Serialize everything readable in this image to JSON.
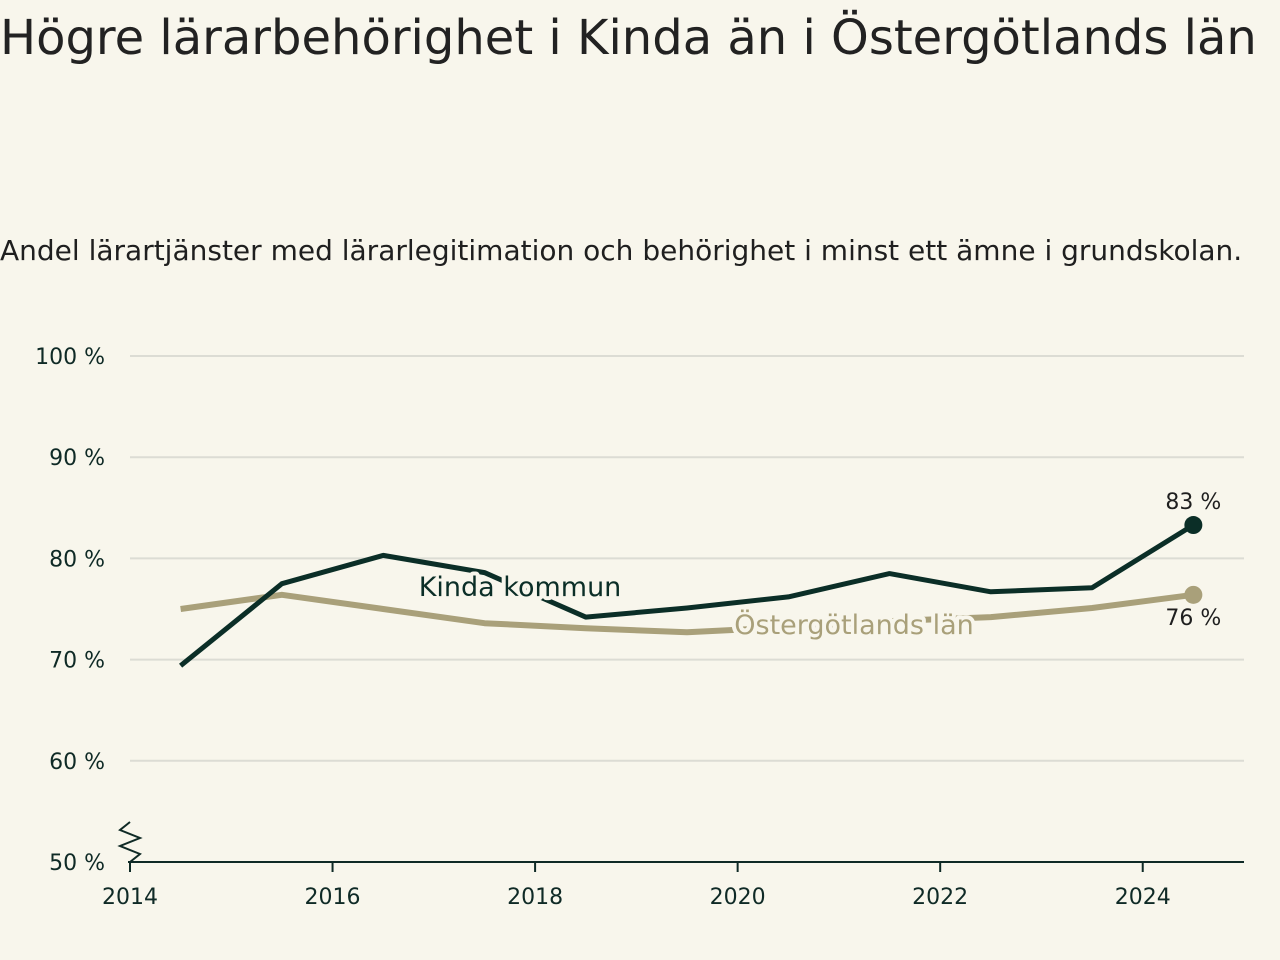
{
  "header": {
    "title": "Högre lärarbehörighet i Kinda än i Östergötlands län",
    "subtitle": "Andel lärartjänster med lärarlegitimation och behörighet i minst ett ämne i grundskolan."
  },
  "colors": {
    "background": "#f8f6ec",
    "kinda": "#0b2e27",
    "ostergotland": "#a9a07a",
    "grid": "#dcdcd4",
    "axis": "#0f2a26"
  },
  "chart_data": {
    "type": "line",
    "title": "Högre lärarbehörighet i Kinda än i Östergötlands län",
    "subtitle": "Andel lärartjänster med lärarlegitimation och behörighet i minst ett ämne i grundskolan.",
    "x": [
      2014.5,
      2015.5,
      2016.5,
      2017.5,
      2018.5,
      2019.5,
      2020.5,
      2021.5,
      2022.5,
      2023.5,
      2024.5
    ],
    "x_ticks": [
      2014,
      2016,
      2018,
      2020,
      2022,
      2024
    ],
    "x_tick_labels": [
      "2014",
      "2016",
      "2018",
      "2020",
      "2022",
      "2024"
    ],
    "xlim": [
      2014,
      2025
    ],
    "y_ticks": [
      50,
      60,
      70,
      80,
      90,
      100
    ],
    "y_tick_labels": [
      "50 %",
      "60 %",
      "70 %",
      "80 %",
      "90 %",
      "100 %"
    ],
    "ylim": [
      50,
      100
    ],
    "y_axis_break": true,
    "grid": true,
    "series": [
      {
        "name": "Kinda kommun",
        "values": [
          69.4,
          77.5,
          80.3,
          78.6,
          74.2,
          75.1,
          76.2,
          78.5,
          76.7,
          77.1,
          83.3
        ],
        "end_label": "83 %"
      },
      {
        "name": "Östergötlands län",
        "values": [
          75.0,
          76.4,
          75.0,
          73.6,
          73.1,
          72.7,
          73.2,
          73.8,
          74.2,
          75.1,
          76.4
        ],
        "end_label": "76 %"
      }
    ]
  }
}
